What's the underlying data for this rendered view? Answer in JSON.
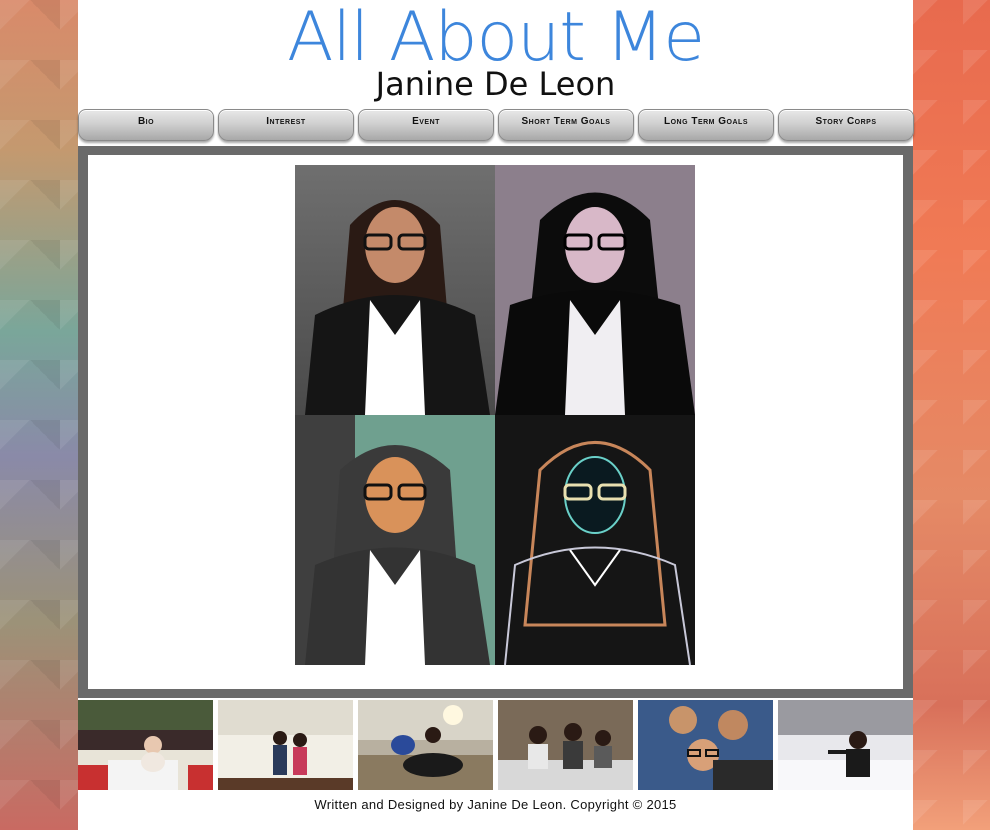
{
  "header": {
    "title": "All About Me",
    "subtitle": "Janine De Leon"
  },
  "nav": {
    "items": [
      {
        "label": "Bio"
      },
      {
        "label": "Interest"
      },
      {
        "label": "Event"
      },
      {
        "label": "Short Term Goals"
      },
      {
        "label": "Long Term Goals"
      },
      {
        "label": "Story Corps"
      }
    ]
  },
  "main": {
    "collage": [
      {
        "style": "natural portrait"
      },
      {
        "style": "posterized portrait"
      },
      {
        "style": "cutout color portrait"
      },
      {
        "style": "glowing edges portrait"
      }
    ]
  },
  "thumbnails": [
    {
      "subject": "baby on balcony"
    },
    {
      "subject": "children on sofa"
    },
    {
      "subject": "person with dog at sunset"
    },
    {
      "subject": "friends on bed"
    },
    {
      "subject": "group selfie"
    },
    {
      "subject": "person in snow"
    }
  ],
  "footer": {
    "text": "Written and Designed by Janine De Leon. Copyright © 2015"
  },
  "colors": {
    "title": "#3d86dc",
    "frame": "#6a6a6a"
  }
}
